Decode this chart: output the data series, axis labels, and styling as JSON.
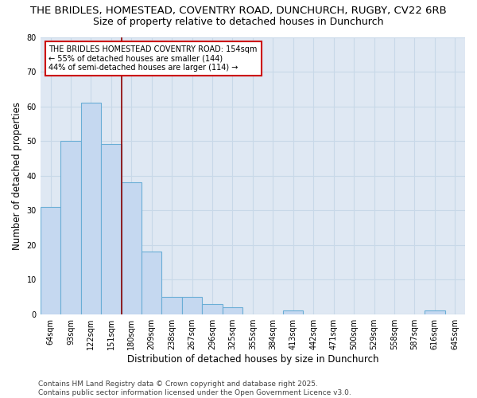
{
  "title1": "THE BRIDLES, HOMESTEAD, COVENTRY ROAD, DUNCHURCH, RUGBY, CV22 6RB",
  "title2": "Size of property relative to detached houses in Dunchurch",
  "xlabel": "Distribution of detached houses by size in Dunchurch",
  "ylabel": "Number of detached properties",
  "categories": [
    "64sqm",
    "93sqm",
    "122sqm",
    "151sqm",
    "180sqm",
    "209sqm",
    "238sqm",
    "267sqm",
    "296sqm",
    "325sqm",
    "355sqm",
    "384sqm",
    "413sqm",
    "442sqm",
    "471sqm",
    "500sqm",
    "529sqm",
    "558sqm",
    "587sqm",
    "616sqm",
    "645sqm"
  ],
  "values": [
    31,
    50,
    61,
    49,
    38,
    18,
    5,
    5,
    3,
    2,
    0,
    0,
    1,
    0,
    0,
    0,
    0,
    0,
    0,
    1,
    0
  ],
  "bar_color": "#c5d8f0",
  "bar_edge_color": "#6aaed6",
  "grid_color": "#c8d8e8",
  "background_color": "#dfe8f3",
  "vline_color": "#8b0000",
  "vline_x_index": 3,
  "annotation_text_line1": "THE BRIDLES HOMESTEAD COVENTRY ROAD: 154sqm",
  "annotation_text_line2": "← 55% of detached houses are smaller (144)",
  "annotation_text_line3": "44% of semi-detached houses are larger (114) →",
  "annotation_box_color": "white",
  "annotation_box_edge": "#cc0000",
  "ylim": [
    0,
    80
  ],
  "yticks": [
    0,
    10,
    20,
    30,
    40,
    50,
    60,
    70,
    80
  ],
  "footer_text": "Contains HM Land Registry data © Crown copyright and database right 2025.\nContains public sector information licensed under the Open Government Licence v3.0.",
  "title_fontsize": 9.5,
  "subtitle_fontsize": 9,
  "axis_label_fontsize": 8.5,
  "tick_fontsize": 7,
  "annotation_fontsize": 7,
  "footer_fontsize": 6.5
}
